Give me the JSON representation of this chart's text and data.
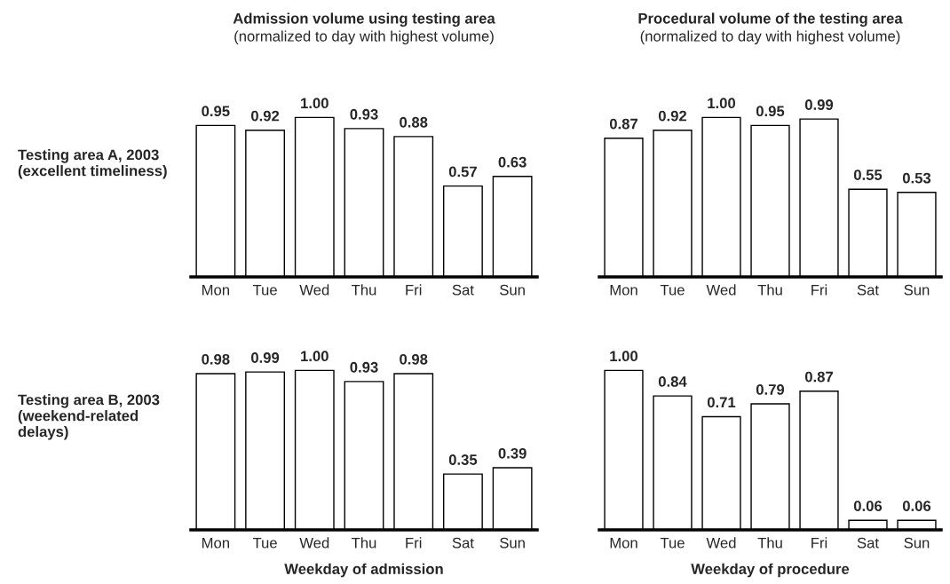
{
  "chart_data": [
    {
      "type": "bar",
      "title": "Admission volume using testing area",
      "subtitle": "(normalized to day with highest volume)",
      "ylabel": "Testing area A, 2003\n(excellent timeliness)",
      "categories": [
        "Mon",
        "Tue",
        "Wed",
        "Thu",
        "Fri",
        "Sat",
        "Sun"
      ],
      "values": [
        0.95,
        0.92,
        1.0,
        0.93,
        0.88,
        0.57,
        0.63
      ],
      "value_labels": [
        "0.95",
        "0.92",
        "1.00",
        "0.93",
        "0.88",
        "0.57",
        "0.63"
      ],
      "color": "#ffffff",
      "tick_labels": "x"
    },
    {
      "type": "bar",
      "title": "Procedural volume of the testing area",
      "subtitle": "(normalized to day with highest volume)",
      "categories": [
        "Mon",
        "Tue",
        "Wed",
        "Thu",
        "Fri",
        "Sat",
        "Sun"
      ],
      "values": [
        0.87,
        0.92,
        1.0,
        0.95,
        0.99,
        0.55,
        0.53
      ],
      "value_labels": [
        "0.87",
        "0.92",
        "1.00",
        "0.95",
        "0.99",
        "0.55",
        "0.53"
      ],
      "color": "#ffffff",
      "tick_labels": "x"
    },
    {
      "type": "bar",
      "ylabel": "Testing area B, 2003\n(weekend-related\ndelays)",
      "xlabel": "Weekday of admission",
      "categories": [
        "Mon",
        "Tue",
        "Wed",
        "Thu",
        "Fri",
        "Sat",
        "Sun"
      ],
      "values": [
        0.98,
        0.99,
        1.0,
        0.93,
        0.98,
        0.35,
        0.39
      ],
      "value_labels": [
        "0.98",
        "0.99",
        "1.00",
        "0.93",
        "0.98",
        "0.35",
        "0.39"
      ],
      "color": "#ffffff",
      "tick_labels": "x"
    },
    {
      "type": "bar",
      "xlabel": "Weekday of procedure",
      "categories": [
        "Mon",
        "Tue",
        "Wed",
        "Thu",
        "Fri",
        "Sat",
        "Sun"
      ],
      "values": [
        1.0,
        0.84,
        0.71,
        0.79,
        0.87,
        0.06,
        0.06
      ],
      "value_labels": [
        "1.00",
        "0.84",
        "0.71",
        "0.79",
        "0.87",
        "0.06",
        "0.06"
      ],
      "color": "#ffffff",
      "tick_labels": "x"
    }
  ]
}
